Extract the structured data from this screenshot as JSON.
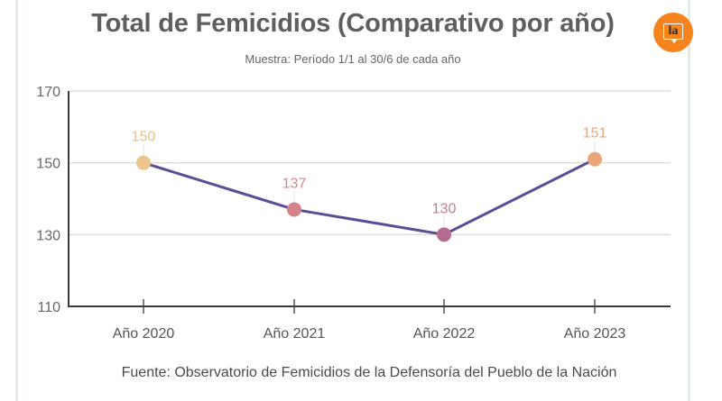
{
  "chart_data": {
    "type": "line",
    "title": "Total de Femicidios (Comparativo por año)",
    "subtitle": "Muestra: Período 1/1 al 30/6 de cada año",
    "source": "Fuente: Observatorio de Femicidios de la Defensoría del Pueblo de la Nación",
    "categories": [
      "Año 2020",
      "Año 2021",
      "Año 2022",
      "Año 2023"
    ],
    "series": [
      {
        "name": "Total de Femicidios",
        "values": [
          150,
          137,
          130,
          151
        ],
        "line_color": "#5b4e96"
      }
    ],
    "point_colors": [
      "#ecc48c",
      "#d4838a",
      "#b66b93",
      "#eaa478"
    ],
    "label_colors": [
      "#e8c08c",
      "#d08890",
      "#c07c98",
      "#e6a67e"
    ],
    "yticks": [
      110,
      130,
      150,
      170
    ],
    "ylim": [
      110,
      170
    ],
    "xlabel": "",
    "ylabel": "",
    "grid": true,
    "legend": "none"
  },
  "brand": {
    "logo_text": "la",
    "logo_color": "#f5841f"
  }
}
